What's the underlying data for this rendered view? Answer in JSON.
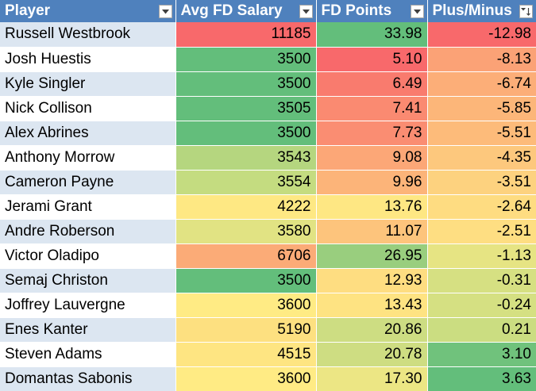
{
  "colors": {
    "header_bg": "#4f81bd",
    "band_light_blue": "#dce6f1",
    "band_white": "#ffffff",
    "scale_low": "#f8696b",
    "scale_mid": "#ffeb84",
    "scale_high": "#63be7b"
  },
  "table": {
    "headers": [
      {
        "label": "Player",
        "filter_icon": "dropdown-arrow-icon"
      },
      {
        "label": "Avg FD Salary",
        "filter_icon": "dropdown-arrow-icon"
      },
      {
        "label": "FD Points",
        "filter_icon": "dropdown-arrow-icon"
      },
      {
        "label": "Plus/Minus",
        "filter_icon": "sort-ascending-filter-icon"
      }
    ],
    "rows": [
      {
        "player": "Russell Westbrook",
        "salary": "11185",
        "points": "33.98",
        "plus_minus": "-12.98",
        "salary_color": "#f8696b",
        "points_color": "#63be7b",
        "plus_minus_color": "#f8696b"
      },
      {
        "player": "Josh Huestis",
        "salary": "3500",
        "points": "5.10",
        "plus_minus": "-8.13",
        "salary_color": "#63be7b",
        "points_color": "#f8696b",
        "plus_minus_color": "#fba276"
      },
      {
        "player": "Kyle Singler",
        "salary": "3500",
        "points": "6.49",
        "plus_minus": "-6.74",
        "salary_color": "#63be7b",
        "points_color": "#f97b6e",
        "plus_minus_color": "#fcae78"
      },
      {
        "player": "Nick Collison",
        "salary": "3505",
        "points": "7.41",
        "plus_minus": "-5.85",
        "salary_color": "#63be7b",
        "points_color": "#fa8a71",
        "plus_minus_color": "#fcb679"
      },
      {
        "player": "Alex Abrines",
        "salary": "3500",
        "points": "7.73",
        "plus_minus": "-5.51",
        "salary_color": "#63be7b",
        "points_color": "#fa8d72",
        "plus_minus_color": "#fdbb7a"
      },
      {
        "player": "Anthony Morrow",
        "salary": "3543",
        "points": "9.08",
        "plus_minus": "-4.35",
        "salary_color": "#b5d67f",
        "points_color": "#fca777",
        "plus_minus_color": "#fdc87d"
      },
      {
        "player": "Cameron Payne",
        "salary": "3554",
        "points": "9.96",
        "plus_minus": "-3.51",
        "salary_color": "#c4dc80",
        "points_color": "#fcb479",
        "plus_minus_color": "#fdd27f"
      },
      {
        "player": "Jerami Grant",
        "salary": "4222",
        "points": "13.76",
        "plus_minus": "-2.64",
        "salary_color": "#fee883",
        "points_color": "#fee783",
        "plus_minus_color": "#fedc81"
      },
      {
        "player": "Andre Roberson",
        "salary": "3580",
        "points": "11.07",
        "plus_minus": "-2.51",
        "salary_color": "#e1e383",
        "points_color": "#fdc47c",
        "plus_minus_color": "#fede82"
      },
      {
        "player": "Victor Oladipo",
        "salary": "6706",
        "points": "26.95",
        "plus_minus": "-1.13",
        "salary_color": "#fbab77",
        "points_color": "#99ce7e",
        "plus_minus_color": "#e6e483"
      },
      {
        "player": "Semaj Christon",
        "salary": "3500",
        "points": "12.93",
        "plus_minus": "-0.31",
        "salary_color": "#63be7b",
        "points_color": "#fedd81",
        "plus_minus_color": "#d6e082"
      },
      {
        "player": "Joffrey Lauvergne",
        "salary": "3600",
        "points": "13.43",
        "plus_minus": "-0.24",
        "salary_color": "#ffeb84",
        "points_color": "#fee382",
        "plus_minus_color": "#d5e082"
      },
      {
        "player": "Enes Kanter",
        "salary": "5190",
        "points": "20.86",
        "plus_minus": "0.21",
        "salary_color": "#fde080",
        "points_color": "#cddd82",
        "plus_minus_color": "#cbdd81"
      },
      {
        "player": "Steven Adams",
        "salary": "4515",
        "points": "20.78",
        "plus_minus": "3.10",
        "salary_color": "#fee582",
        "points_color": "#cedd82",
        "plus_minus_color": "#70c27c"
      },
      {
        "player": "Domantas Sabonis",
        "salary": "3600",
        "points": "17.30",
        "plus_minus": "3.63",
        "salary_color": "#ffeb84",
        "points_color": "#ece684",
        "plus_minus_color": "#63be7b"
      }
    ]
  }
}
